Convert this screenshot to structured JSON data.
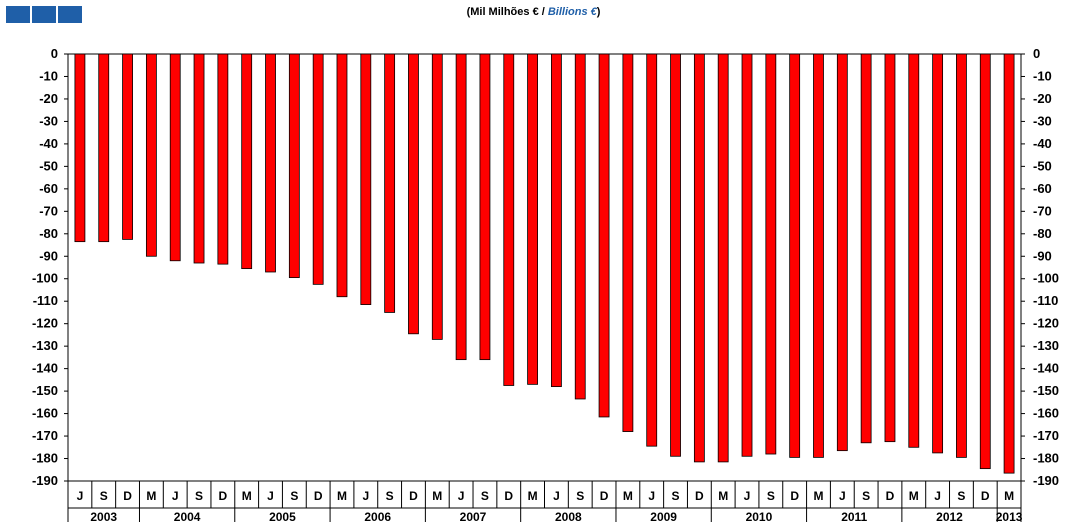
{
  "logo": {
    "icon": "bank-logo-icon",
    "color": "#1f5fa8"
  },
  "header": {
    "title_pt": "(Mil Milhões € / ",
    "title_en": "Billions €",
    "title_close": ")"
  },
  "chart_data": {
    "type": "bar",
    "ylim": [
      -190,
      0
    ],
    "yticks": [
      0,
      -10,
      -20,
      -30,
      -40,
      -50,
      -60,
      -70,
      -80,
      -90,
      -100,
      -110,
      -120,
      -130,
      -140,
      -150,
      -160,
      -170,
      -180,
      -190
    ],
    "bar_color": "#ff0000",
    "grid": false,
    "categories": [
      "J",
      "S",
      "D",
      "M",
      "J",
      "S",
      "D",
      "M",
      "J",
      "S",
      "D",
      "M",
      "J",
      "S",
      "D",
      "M",
      "J",
      "S",
      "D",
      "M",
      "J",
      "S",
      "D",
      "M",
      "J",
      "S",
      "D",
      "M",
      "J",
      "S",
      "D",
      "M",
      "J",
      "S",
      "D",
      "M",
      "J",
      "S",
      "D",
      "M"
    ],
    "values": [
      -83.5,
      -83.5,
      -82.5,
      -90,
      -92,
      -93,
      -93.5,
      -95.5,
      -97,
      -99.5,
      -102.5,
      -108,
      -111.5,
      -115,
      -124.5,
      -127,
      -136,
      -136,
      -147.5,
      -147,
      -148,
      -153.5,
      -161.5,
      -168,
      -174.5,
      -179,
      -181.5,
      -181.5,
      -179,
      -178,
      -179.5,
      -179.5,
      -176.5,
      -173,
      -172.5,
      -175,
      -177.5,
      -179.5,
      -184.5,
      -186.5
    ],
    "years": [
      {
        "label": "2003",
        "start": 0,
        "end": 2
      },
      {
        "label": "2004",
        "start": 3,
        "end": 6
      },
      {
        "label": "2005",
        "start": 7,
        "end": 10
      },
      {
        "label": "2006",
        "start": 11,
        "end": 14
      },
      {
        "label": "2007",
        "start": 15,
        "end": 18
      },
      {
        "label": "2008",
        "start": 19,
        "end": 22
      },
      {
        "label": "2009",
        "start": 23,
        "end": 26
      },
      {
        "label": "2010",
        "start": 27,
        "end": 30
      },
      {
        "label": "2011",
        "start": 31,
        "end": 34
      },
      {
        "label": "2012",
        "start": 35,
        "end": 38
      },
      {
        "label": "2013",
        "start": 39,
        "end": 39
      }
    ]
  }
}
